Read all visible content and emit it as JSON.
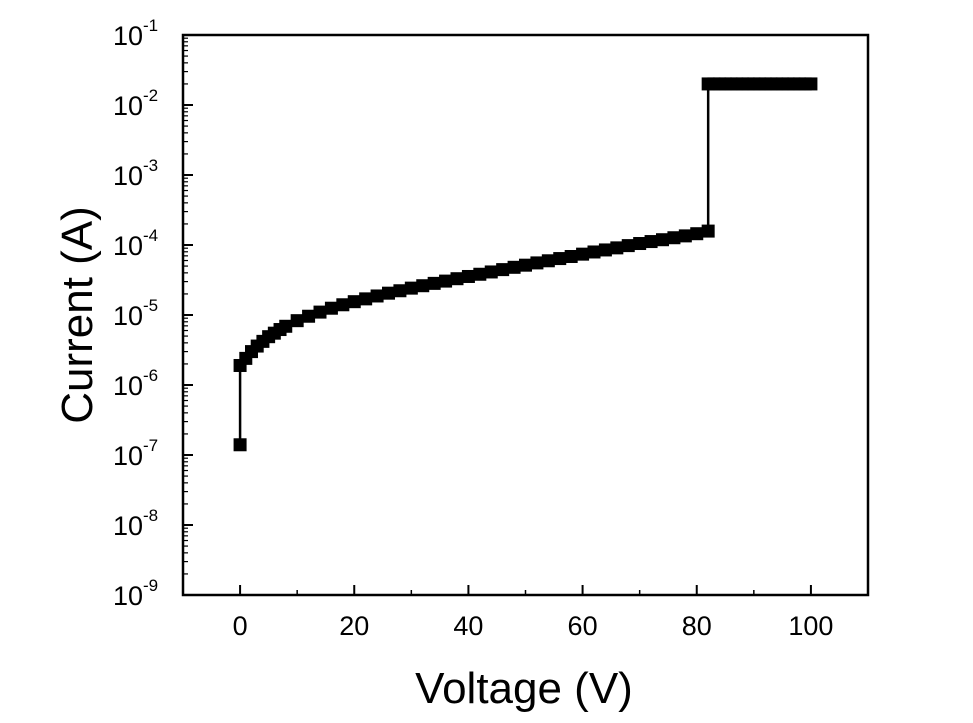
{
  "chart_data": {
    "type": "scatter",
    "xlabel": "Voltage (V)",
    "ylabel": "Current (A)",
    "xlim": [
      -10,
      110
    ],
    "ylim": [
      1e-09,
      0.1
    ],
    "y_scale": "log",
    "x_ticks": [
      0,
      20,
      40,
      60,
      80,
      100
    ],
    "y_ticks": [
      {
        "base": "10",
        "exp": "-1",
        "value": 0.1
      },
      {
        "base": "10",
        "exp": "-2",
        "value": 0.01
      },
      {
        "base": "10",
        "exp": "-3",
        "value": 0.001
      },
      {
        "base": "10",
        "exp": "-4",
        "value": 0.0001
      },
      {
        "base": "10",
        "exp": "-5",
        "value": 1e-05
      },
      {
        "base": "10",
        "exp": "-6",
        "value": 1e-06
      },
      {
        "base": "10",
        "exp": "-7",
        "value": 1e-07
      },
      {
        "base": "10",
        "exp": "-8",
        "value": 1e-08
      },
      {
        "base": "10",
        "exp": "-9",
        "value": 1e-09
      }
    ],
    "grid": false,
    "legend": "none",
    "marker": "square",
    "connect_points": true,
    "color": "#000000",
    "series": [
      {
        "x": [
          0,
          0,
          1,
          2,
          3,
          4,
          5,
          6,
          7,
          8,
          10,
          12,
          14,
          16,
          18,
          20,
          22,
          24,
          26,
          28,
          30,
          32,
          34,
          36,
          38,
          40,
          42,
          44,
          46,
          48,
          50,
          52,
          54,
          56,
          58,
          60,
          62,
          64,
          66,
          68,
          70,
          72,
          74,
          76,
          78,
          80,
          82,
          82,
          83,
          84,
          85,
          86,
          87,
          88,
          89,
          90,
          91,
          92,
          93,
          94,
          95,
          96,
          97,
          98,
          99,
          100
        ],
        "y": [
          1.4e-07,
          1.9e-06,
          2.4e-06,
          3e-06,
          3.6e-06,
          4.2e-06,
          4.9e-06,
          5.5e-06,
          6.2e-06,
          6.9e-06,
          8.3e-06,
          9.6e-06,
          1.1e-05,
          1.25e-05,
          1.4e-05,
          1.55e-05,
          1.7e-05,
          1.87e-05,
          2.05e-05,
          2.22e-05,
          2.42e-05,
          2.62e-05,
          2.83e-05,
          3.05e-05,
          3.3e-05,
          3.55e-05,
          3.82e-05,
          4.12e-05,
          4.45e-05,
          4.8e-05,
          5.15e-05,
          5.55e-05,
          5.95e-05,
          6.4e-05,
          6.85e-05,
          7.4e-05,
          7.95e-05,
          8.5e-05,
          9.1e-05,
          9.8e-05,
          0.000105,
          0.000112,
          0.000119,
          0.000127,
          0.000135,
          0.000145,
          0.000158,
          0.02,
          0.02,
          0.02,
          0.02,
          0.02,
          0.02,
          0.02,
          0.02,
          0.02,
          0.02,
          0.02,
          0.02,
          0.02,
          0.02,
          0.02,
          0.02,
          0.02,
          0.02,
          0.02
        ]
      }
    ]
  }
}
